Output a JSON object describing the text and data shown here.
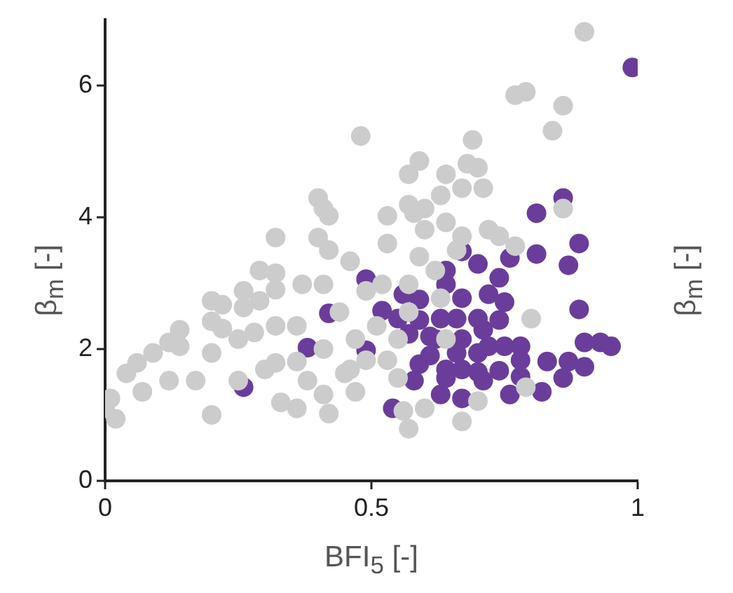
{
  "chart_data": {
    "type": "scatter",
    "xlabel": "BFI$_{5}$ [-]",
    "ylabel": "β$_{m}$ [-]",
    "y2label": "β$_{m}$ [-]",
    "xlim": [
      0,
      1
    ],
    "xticks": [
      0,
      0.5,
      1
    ],
    "ylim": [
      0,
      7
    ],
    "yticks": [
      0,
      2,
      4,
      6
    ],
    "grid": false,
    "legend": false,
    "marker": "circle",
    "series": [
      {
        "color": "#cccccc",
        "x": [
          0,
          0.02,
          0.01,
          0.04,
          0.06,
          0.09,
          0.12,
          0.14,
          0.14,
          0.2,
          0.2,
          0.2,
          0.22,
          0.2,
          0.22,
          0.26,
          0.25,
          0.28,
          0.32,
          0.3,
          0.32,
          0.25,
          0.33,
          0.36,
          0.42,
          0.37,
          0.32,
          0.29,
          0.32,
          0.4,
          0.41,
          0.42,
          0.42,
          0.4,
          0.32,
          0.46,
          0.44,
          0.41,
          0.45,
          0.49,
          0.47,
          0.41,
          0.47,
          0.48,
          0.53,
          0.57,
          0.53,
          0.52,
          0.51,
          0.55,
          0.56,
          0.57,
          0.59,
          0.58,
          0.6,
          0.6,
          0.63,
          0.64,
          0.69,
          0.7,
          0.68,
          0.71,
          0.72,
          0.67,
          0.64,
          0.66,
          0.74,
          0.77,
          0.77,
          0.79,
          0.86,
          0.84,
          0.9,
          0.86,
          0.8,
          0.79,
          0.7,
          0.6,
          0.67,
          0.55,
          0.46,
          0.38,
          0.36,
          0.53,
          0.57,
          0.59,
          0.62,
          0.63,
          0.57,
          0.49,
          0.41,
          0.36,
          0.17,
          0.12,
          0.07,
          0.29,
          0.26,
          0.64,
          0.67,
          0.57
        ],
        "values": [
          1.1,
          0.94,
          1.25,
          1.63,
          1.79,
          1.94,
          2.1,
          2.29,
          2.04,
          2.42,
          1.94,
          1.0,
          2.31,
          2.73,
          2.67,
          2.63,
          2.15,
          2.25,
          2.35,
          1.69,
          1.79,
          1.52,
          1.19,
          1.1,
          1.02,
          2.98,
          2.9,
          2.73,
          3.15,
          3.69,
          4.13,
          4.02,
          3.5,
          4.29,
          3.69,
          3.33,
          2.56,
          2.0,
          1.63,
          1.83,
          2.15,
          1.31,
          1.35,
          5.23,
          4.02,
          4.19,
          3.6,
          2.98,
          2.35,
          2.15,
          1.06,
          0.79,
          4.85,
          4.06,
          4.13,
          3.81,
          4.33,
          4.65,
          5.17,
          4.75,
          4.81,
          4.44,
          3.81,
          3.71,
          3.92,
          3.5,
          3.71,
          3.56,
          5.85,
          5.9,
          5.69,
          5.31,
          6.81,
          4.13,
          2.46,
          1.42,
          1.21,
          1.1,
          0.9,
          1.56,
          1.69,
          1.52,
          1.81,
          1.83,
          2.98,
          3.4,
          3.19,
          2.77,
          2.56,
          2.88,
          2.98,
          2.35,
          1.52,
          1.52,
          1.35,
          3.19,
          2.88,
          2.15,
          4.44,
          4.65
        ]
      },
      {
        "color": "#6a3d9a",
        "x": [
          0.99,
          0.86,
          0.81,
          0.89,
          0.87,
          0.81,
          0.76,
          0.7,
          0.64,
          0.59,
          0.56,
          0.49,
          0.42,
          0.49,
          0.38,
          0.26,
          0.54,
          0.89,
          0.9,
          0.93,
          0.95,
          0.9,
          0.87,
          0.83,
          0.78,
          0.86,
          0.82,
          0.76,
          0.71,
          0.67,
          0.63,
          0.59,
          0.58,
          0.64,
          0.66,
          0.7,
          0.72,
          0.75,
          0.78,
          0.67,
          0.71,
          0.66,
          0.7,
          0.74,
          0.67,
          0.72,
          0.74,
          0.63,
          0.59,
          0.61,
          0.55,
          0.52,
          0.64,
          0.67,
          0.75,
          0.67,
          0.7,
          0.74,
          0.78,
          0.62,
          0.57,
          0.61,
          0.64
        ],
        "values": [
          6.27,
          4.29,
          4.06,
          3.6,
          3.27,
          3.44,
          3.38,
          3.29,
          2.98,
          2.75,
          2.83,
          3.06,
          2.54,
          1.98,
          2.02,
          1.42,
          1.1,
          2.6,
          2.1,
          2.1,
          2.04,
          1.73,
          1.81,
          1.81,
          1.58,
          1.56,
          1.35,
          1.31,
          1.52,
          1.25,
          1.31,
          1.77,
          1.52,
          1.56,
          1.94,
          1.94,
          2.04,
          2.04,
          2.04,
          2.15,
          2.29,
          2.46,
          2.46,
          2.44,
          2.77,
          2.83,
          3.08,
          2.46,
          2.44,
          2.19,
          2.46,
          2.58,
          3.19,
          3.48,
          2.71,
          1.69,
          1.65,
          1.67,
          1.83,
          2.15,
          2.23,
          1.9,
          1.69
        ]
      }
    ]
  }
}
